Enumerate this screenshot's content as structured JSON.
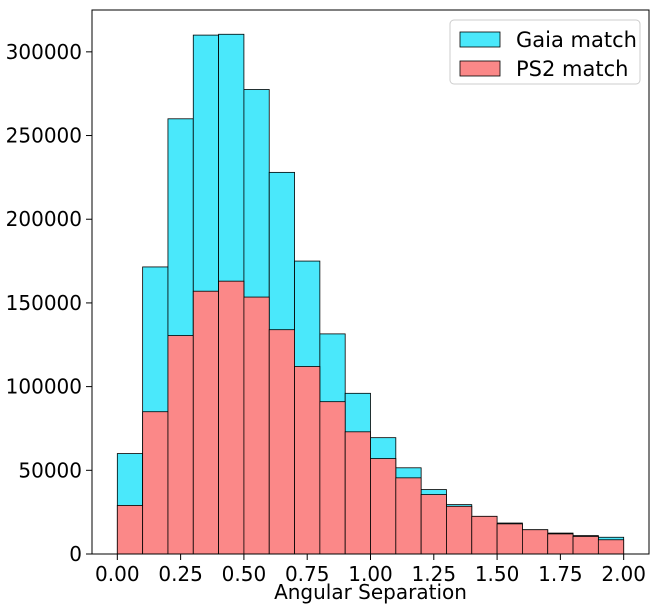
{
  "chart_data": {
    "type": "bar",
    "title": "",
    "xlabel": "Angular Separation",
    "ylabel": "",
    "bin_edges": [
      0.0,
      0.1,
      0.2,
      0.3,
      0.4,
      0.5,
      0.6,
      0.7,
      0.8,
      0.9,
      1.0,
      1.1,
      1.2,
      1.3,
      1.4,
      1.5,
      1.6,
      1.7,
      1.8,
      1.9,
      2.0
    ],
    "xlim": [
      -0.1,
      2.1
    ],
    "ylim": [
      0,
      325000
    ],
    "xticks": [
      "0.00",
      "0.25",
      "0.50",
      "0.75",
      "1.00",
      "1.25",
      "1.50",
      "1.75",
      "2.00"
    ],
    "xtick_values": [
      0.0,
      0.25,
      0.5,
      0.75,
      1.0,
      1.25,
      1.5,
      1.75,
      2.0
    ],
    "yticks": [
      "0",
      "50000",
      "100000",
      "150000",
      "200000",
      "250000",
      "300000"
    ],
    "ytick_values": [
      0,
      50000,
      100000,
      150000,
      200000,
      250000,
      300000
    ],
    "legend_position": "top-right",
    "grid": false,
    "series": [
      {
        "name": "Gaia match",
        "color": "#4ae8fb",
        "values": [
          60000,
          171500,
          260000,
          310000,
          310500,
          277500,
          228000,
          175000,
          131500,
          96000,
          69500,
          51500,
          38500,
          29500,
          22500,
          18500,
          14500,
          12500,
          11000,
          10000
        ]
      },
      {
        "name": "PS2 match",
        "color": "#fb8888",
        "values": [
          29000,
          85000,
          130500,
          157000,
          163000,
          153500,
          134000,
          112000,
          91000,
          73000,
          57000,
          45500,
          35500,
          28500,
          22500,
          18000,
          14500,
          12000,
          10500,
          8500
        ]
      }
    ]
  }
}
